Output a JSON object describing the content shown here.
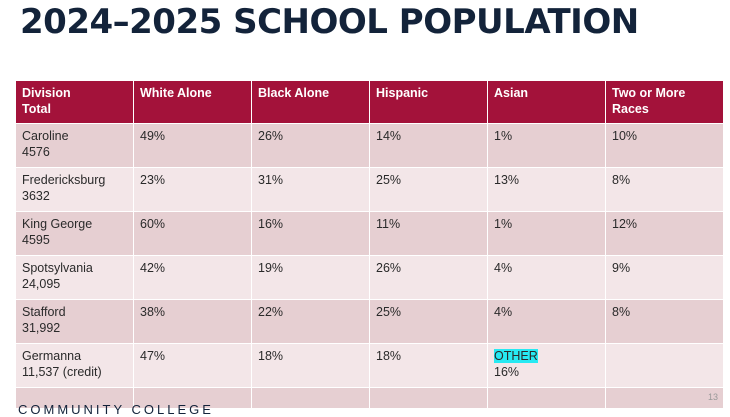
{
  "title": "2024–2025 SCHOOL POPULATION",
  "table": {
    "headers": [
      [
        "Division",
        "Total"
      ],
      [
        "White Alone"
      ],
      [
        "Black Alone"
      ],
      [
        "Hispanic"
      ],
      [
        "Asian"
      ],
      [
        "Two or More",
        "Races"
      ]
    ],
    "rows": [
      {
        "division": "Caroline",
        "total": "4576",
        "white": "49%",
        "black": "26%",
        "hispanic": "14%",
        "asian": "1%",
        "two_or_more": "10%"
      },
      {
        "division": "Fredericksburg",
        "total": "3632",
        "white": "23%",
        "black": "31%",
        "hispanic": "25%",
        "asian": "13%",
        "two_or_more": "8%"
      },
      {
        "division": "King George",
        "total": "4595",
        "white": "60%",
        "black": "16%",
        "hispanic": "11%",
        "asian": "1%",
        "two_or_more": "12%"
      },
      {
        "division": "Spotsylvania",
        "total": "24,095",
        "white": "42%",
        "black": "19%",
        "hispanic": "26%",
        "asian": "4%",
        "two_or_more": "9%"
      },
      {
        "division": "Stafford",
        "total": "31,992",
        "white": "38%",
        "black": "22%",
        "hispanic": "25%",
        "asian": "4%",
        "two_or_more": "8%"
      },
      {
        "division": "Germanna",
        "total": "11,537 (credit)",
        "white": "47%",
        "black": "18%",
        "hispanic": "18%",
        "asian_label": "OTHER",
        "asian_value": "16%",
        "two_or_more": ""
      }
    ]
  },
  "footer": "COMMUNITY COLLEGE",
  "page_number": "13",
  "colors": {
    "title": "#13233a",
    "header_bg": "#a3123a",
    "row_dark": "#e6cfd2",
    "row_light": "#f3e6e8",
    "highlight": "#27e9f2"
  }
}
